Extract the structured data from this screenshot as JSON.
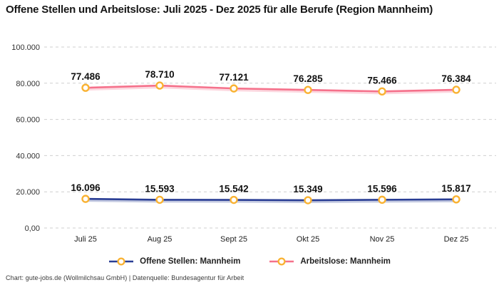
{
  "title": "Offene Stellen und Arbeitslose: Juli 2025 - Dez 2025 für alle Berufe (Region Mannheim)",
  "footer": "Chart: gute-jobs.de (Wollmilchsau GmbH) | Datenquelle: Bundesagentur für Arbeit",
  "colors": {
    "background": "#ffffff",
    "title_text": "#161616",
    "axis_text": "#333333",
    "gridline": "#cfcfcf",
    "data_label_text": "#111111"
  },
  "chart_data": {
    "type": "line",
    "categories": [
      "Juli 25",
      "Aug 25",
      "Sept 25",
      "Okt 25",
      "Nov 25",
      "Dez 25"
    ],
    "series": [
      {
        "name": "Offene Stellen: Mannheim",
        "color": "#293d94",
        "values": [
          16096,
          15593,
          15542,
          15349,
          15596,
          15817
        ],
        "data_labels": [
          "16.096",
          "15.593",
          "15.542",
          "15.349",
          "15.596",
          "15.817"
        ]
      },
      {
        "name": "Arbeitslose: Mannheim",
        "color": "#f5718b",
        "values": [
          77486,
          78710,
          77121,
          76285,
          75466,
          76384
        ],
        "data_labels": [
          "77.486",
          "78.710",
          "77.121",
          "76.285",
          "75.466",
          "76.384"
        ]
      }
    ],
    "y_ticks": [
      {
        "value": 100000,
        "label": "100.000"
      },
      {
        "value": 80000,
        "label": "80.000"
      },
      {
        "value": 60000,
        "label": "60.000"
      },
      {
        "value": 40000,
        "label": "40.000"
      },
      {
        "value": 20000,
        "label": "20.000"
      },
      {
        "value": 0,
        "label": "0,00"
      }
    ],
    "ylim": [
      0,
      100000
    ],
    "grid": "horizontal-dashed",
    "legend_position": "bottom",
    "marker": {
      "fill": "#ffffff",
      "stroke": "#f9b232"
    }
  }
}
